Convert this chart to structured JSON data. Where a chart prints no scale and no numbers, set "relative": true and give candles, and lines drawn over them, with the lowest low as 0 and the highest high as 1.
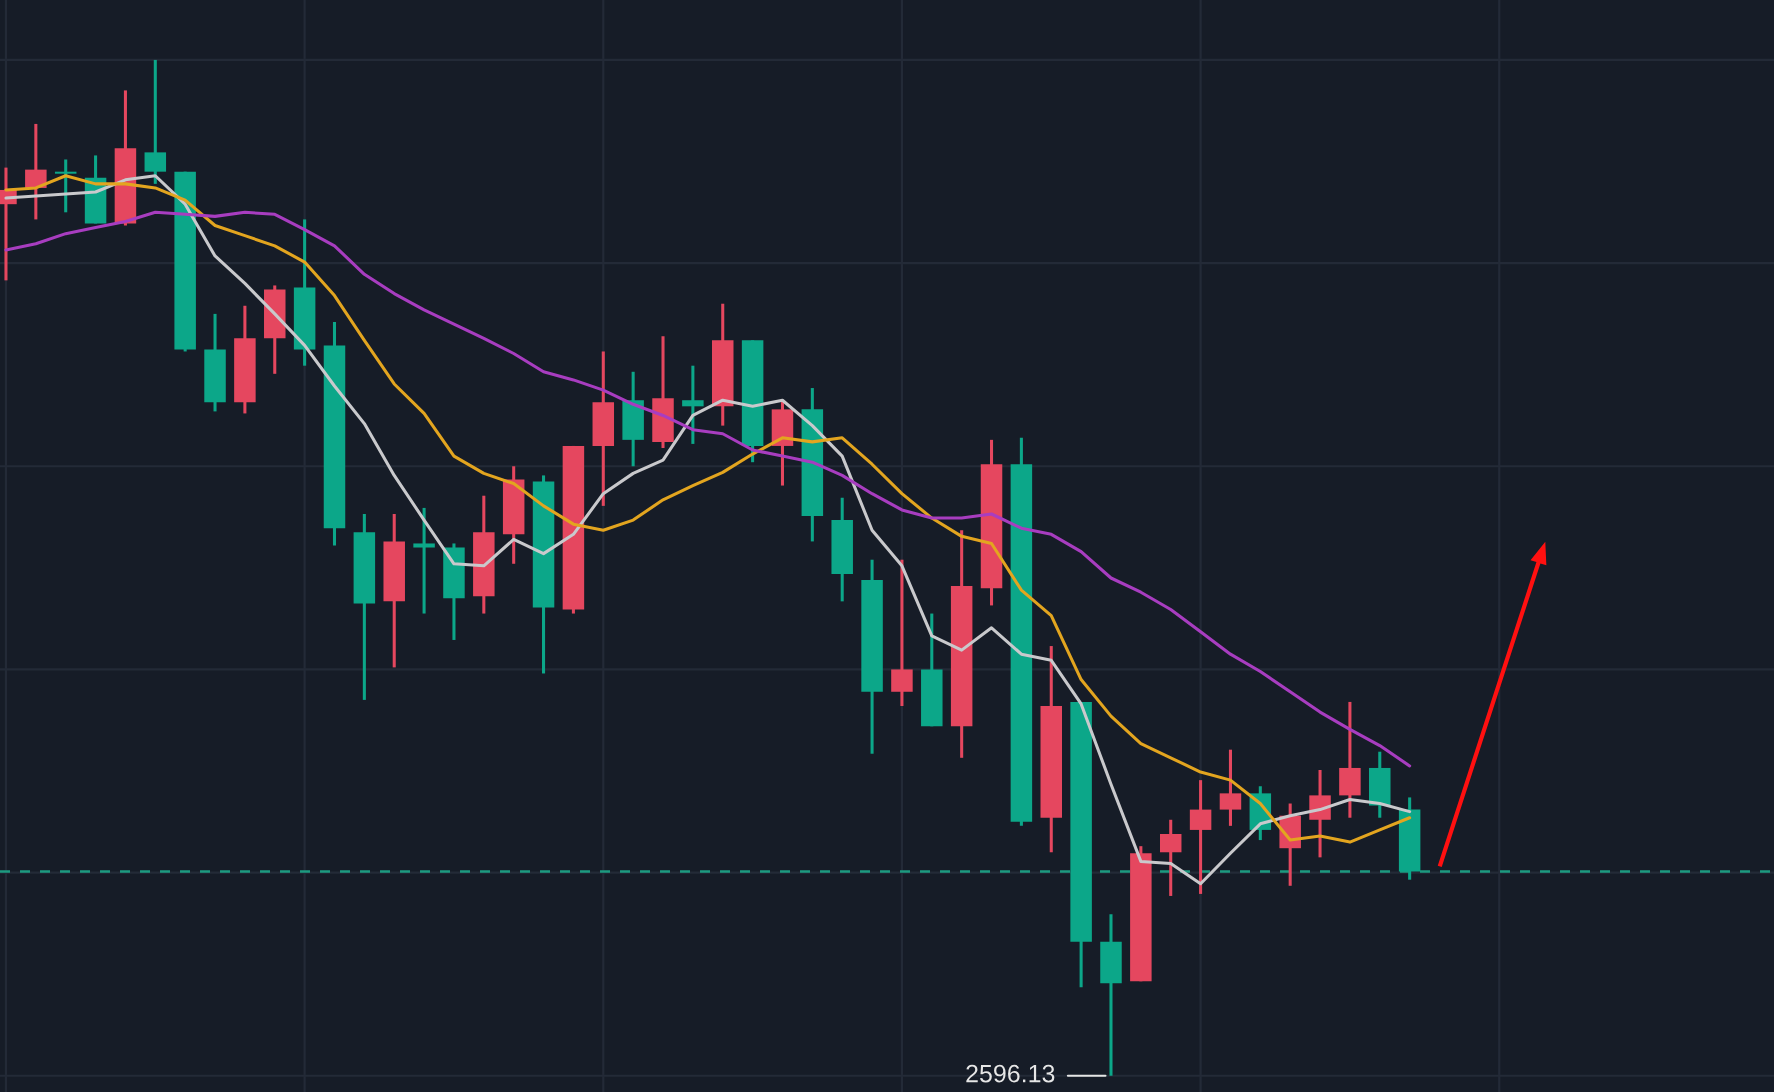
{
  "chart_data": {
    "type": "candlestick",
    "relative": true,
    "grid": true,
    "categories": [
      null,
      null,
      null,
      null,
      null,
      null,
      null,
      null,
      null,
      null,
      null,
      null,
      null,
      null,
      null,
      null,
      null,
      null,
      null,
      null,
      null,
      null,
      null,
      null,
      null,
      null,
      null,
      null,
      null,
      null,
      null,
      null,
      null,
      null,
      null,
      null,
      null,
      null,
      null,
      null,
      null,
      null,
      null,
      null,
      null,
      null,
      null,
      null
    ],
    "ohlc": [
      [
        0.858,
        0.894,
        0.783,
        0.872
      ],
      [
        0.874,
        0.937,
        0.843,
        0.892
      ],
      [
        0.89,
        0.902,
        0.85,
        0.888
      ],
      [
        0.884,
        0.906,
        0.839,
        0.839
      ],
      [
        0.839,
        0.97,
        0.837,
        0.913
      ],
      [
        0.909,
        1,
        0.878,
        0.89
      ],
      [
        0.89,
        0.89,
        0.713,
        0.715
      ],
      [
        0.715,
        0.75,
        0.654,
        0.663
      ],
      [
        0.663,
        0.758,
        0.652,
        0.726
      ],
      [
        0.726,
        0.778,
        0.691,
        0.774
      ],
      [
        0.776,
        0.843,
        0.699,
        0.715
      ],
      [
        0.719,
        0.742,
        0.522,
        0.539
      ],
      [
        0.535,
        0.553,
        0.37,
        0.465
      ],
      [
        0.467,
        0.553,
        0.402,
        0.526
      ],
      [
        0.524,
        0.559,
        0.455,
        0.52
      ],
      [
        0.52,
        0.524,
        0.429,
        0.47
      ],
      [
        0.472,
        0.571,
        0.455,
        0.535
      ],
      [
        0.533,
        0.6,
        0.504,
        0.587
      ],
      [
        0.585,
        0.591,
        0.396,
        0.461
      ],
      [
        0.459,
        0.62,
        0.455,
        0.62
      ],
      [
        0.62,
        0.713,
        0.561,
        0.663
      ],
      [
        0.665,
        0.693,
        0.6,
        0.626
      ],
      [
        0.624,
        0.728,
        0.618,
        0.667
      ],
      [
        0.665,
        0.699,
        0.622,
        0.659
      ],
      [
        0.659,
        0.76,
        0.64,
        0.724
      ],
      [
        0.724,
        0.724,
        0.604,
        0.62
      ],
      [
        0.62,
        0.665,
        0.581,
        0.656
      ],
      [
        0.656,
        0.677,
        0.526,
        0.551
      ],
      [
        0.547,
        0.569,
        0.467,
        0.494
      ],
      [
        0.488,
        0.508,
        0.317,
        0.378
      ],
      [
        0.378,
        0.508,
        0.364,
        0.4
      ],
      [
        0.4,
        0.455,
        0.344,
        0.344
      ],
      [
        0.344,
        0.537,
        0.313,
        0.482
      ],
      [
        0.48,
        0.626,
        0.463,
        0.602
      ],
      [
        0.602,
        0.628,
        0.246,
        0.25
      ],
      [
        0.254,
        0.423,
        0.22,
        0.364
      ],
      [
        0.368,
        0.368,
        0.087,
        0.132
      ],
      [
        0.132,
        0.159,
        0,
        0.091
      ],
      [
        0.093,
        0.226,
        0.093,
        0.219
      ],
      [
        0.22,
        0.252,
        0.177,
        0.238
      ],
      [
        0.242,
        0.291,
        0.179,
        0.262
      ],
      [
        0.262,
        0.321,
        0.246,
        0.278
      ],
      [
        0.278,
        0.285,
        0.232,
        0.242
      ],
      [
        0.224,
        0.268,
        0.187,
        0.256
      ],
      [
        0.252,
        0.301,
        0.215,
        0.276
      ],
      [
        0.276,
        0.368,
        0.254,
        0.303
      ],
      [
        0.303,
        0.319,
        0.254,
        0.266
      ],
      [
        0.262,
        0.274,
        0.193,
        0.201
      ]
    ],
    "colors": [
      "#e5475f",
      "#e5475f",
      "#0ca789",
      "#0ca789",
      "#e5475f",
      "#0ca789",
      "#0ca789",
      "#0ca789",
      "#e5475f",
      "#e5475f",
      "#0ca789",
      "#0ca789",
      "#0ca789",
      "#e5475f",
      "#0ca789",
      "#0ca789",
      "#e5475f",
      "#e5475f",
      "#0ca789",
      "#e5475f",
      "#e5475f",
      "#0ca789",
      "#e5475f",
      "#0ca789",
      "#e5475f",
      "#0ca789",
      "#e5475f",
      "#0ca789",
      "#0ca789",
      "#0ca789",
      "#e5475f",
      "#0ca789",
      "#e5475f",
      "#e5475f",
      "#0ca789",
      "#e5475f",
      "#0ca789",
      "#0ca789",
      "#e5475f",
      "#e5475f",
      "#e5475f",
      "#e5475f",
      "#0ca789",
      "#e5475f",
      "#e5475f",
      "#e5475f",
      "#0ca789",
      "#0ca789"
    ],
    "series": [
      {
        "type": "line",
        "color": "#c9c9cc",
        "values": [
          0.864,
          0.866,
          0.868,
          0.87,
          0.882,
          0.886,
          0.858,
          0.807,
          0.78,
          0.75,
          0.719,
          0.679,
          0.642,
          0.591,
          0.547,
          0.504,
          0.502,
          0.528,
          0.514,
          0.533,
          0.573,
          0.593,
          0.606,
          0.65,
          0.665,
          0.659,
          0.665,
          0.64,
          0.61,
          0.537,
          0.502,
          0.433,
          0.419,
          0.441,
          0.415,
          0.409,
          0.366,
          0.287,
          0.211,
          0.209,
          0.189,
          0.219,
          0.248,
          0.256,
          0.262,
          0.272,
          0.268,
          0.26
        ]
      },
      {
        "type": "line",
        "color": "#e3a51f",
        "values": [
          0.872,
          0.874,
          0.886,
          0.878,
          0.878,
          0.874,
          0.862,
          0.837,
          0.827,
          0.817,
          0.801,
          0.768,
          0.724,
          0.681,
          0.652,
          0.61,
          0.593,
          0.583,
          0.561,
          0.543,
          0.537,
          0.547,
          0.567,
          0.581,
          0.594,
          0.612,
          0.628,
          0.624,
          0.628,
          0.602,
          0.573,
          0.549,
          0.531,
          0.524,
          0.478,
          0.453,
          0.39,
          0.354,
          0.327,
          0.313,
          0.299,
          0.291,
          0.268,
          0.232,
          0.236,
          0.23,
          0.242,
          0.254
        ]
      },
      {
        "type": "line",
        "color": "#a83dc0",
        "values": [
          0.813,
          0.819,
          0.829,
          0.835,
          0.841,
          0.85,
          0.848,
          0.846,
          0.85,
          0.848,
          0.833,
          0.817,
          0.789,
          0.77,
          0.754,
          0.74,
          0.726,
          0.711,
          0.693,
          0.685,
          0.675,
          0.661,
          0.65,
          0.636,
          0.632,
          0.616,
          0.61,
          0.604,
          0.591,
          0.573,
          0.557,
          0.549,
          0.549,
          0.553,
          0.539,
          0.533,
          0.516,
          0.49,
          0.476,
          0.459,
          0.437,
          0.415,
          0.398,
          0.378,
          0.358,
          0.341,
          0.325,
          0.305
        ]
      }
    ],
    "ref_lines": [
      {
        "axis": "y",
        "value": 0.201,
        "color": "#1d9a80",
        "line_style": "dashed"
      }
    ],
    "annotations": [
      "2596.13"
    ]
  }
}
